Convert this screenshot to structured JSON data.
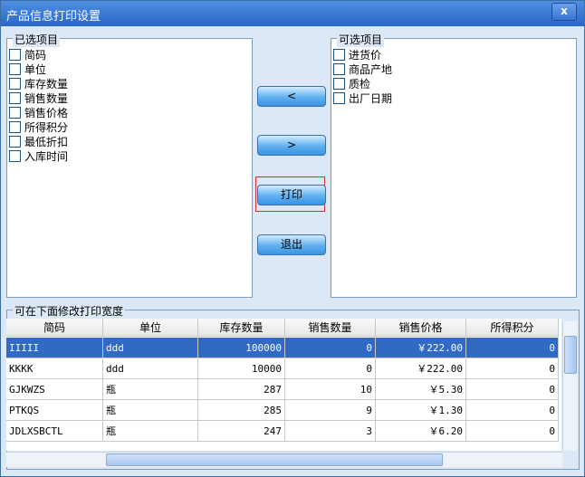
{
  "window": {
    "title": "产品信息打印设置",
    "close": "x"
  },
  "selected": {
    "label": "已选项目",
    "items": [
      "简码",
      "单位",
      "库存数量",
      "销售数量",
      "销售价格",
      "所得积分",
      "最低折扣",
      "入库时间"
    ]
  },
  "available": {
    "label": "可选项目",
    "items": [
      "进货价",
      "商品产地",
      "质检",
      "出厂日期"
    ]
  },
  "buttons": [
    "<",
    ">",
    "打印",
    "退出"
  ],
  "table": {
    "label": "可在下面修改打印宽度",
    "columns": [
      "简码",
      "单位",
      "库存数量",
      "销售数量",
      "销售价格",
      "所得积分"
    ],
    "rows": [
      [
        "IIIII",
        "ddd",
        "100000",
        "0",
        "￥222.00",
        "0"
      ],
      [
        "KKKK",
        "ddd",
        "10000",
        "0",
        "￥222.00",
        "0"
      ],
      [
        "GJKWZS",
        "瓶",
        "287",
        "10",
        "￥5.30",
        "0"
      ],
      [
        "PTKQS",
        "瓶",
        "285",
        "9",
        "￥1.30",
        "0"
      ],
      [
        "JDLXSBCTL",
        "瓶",
        "247",
        "3",
        "￥6.20",
        "0"
      ]
    ]
  }
}
